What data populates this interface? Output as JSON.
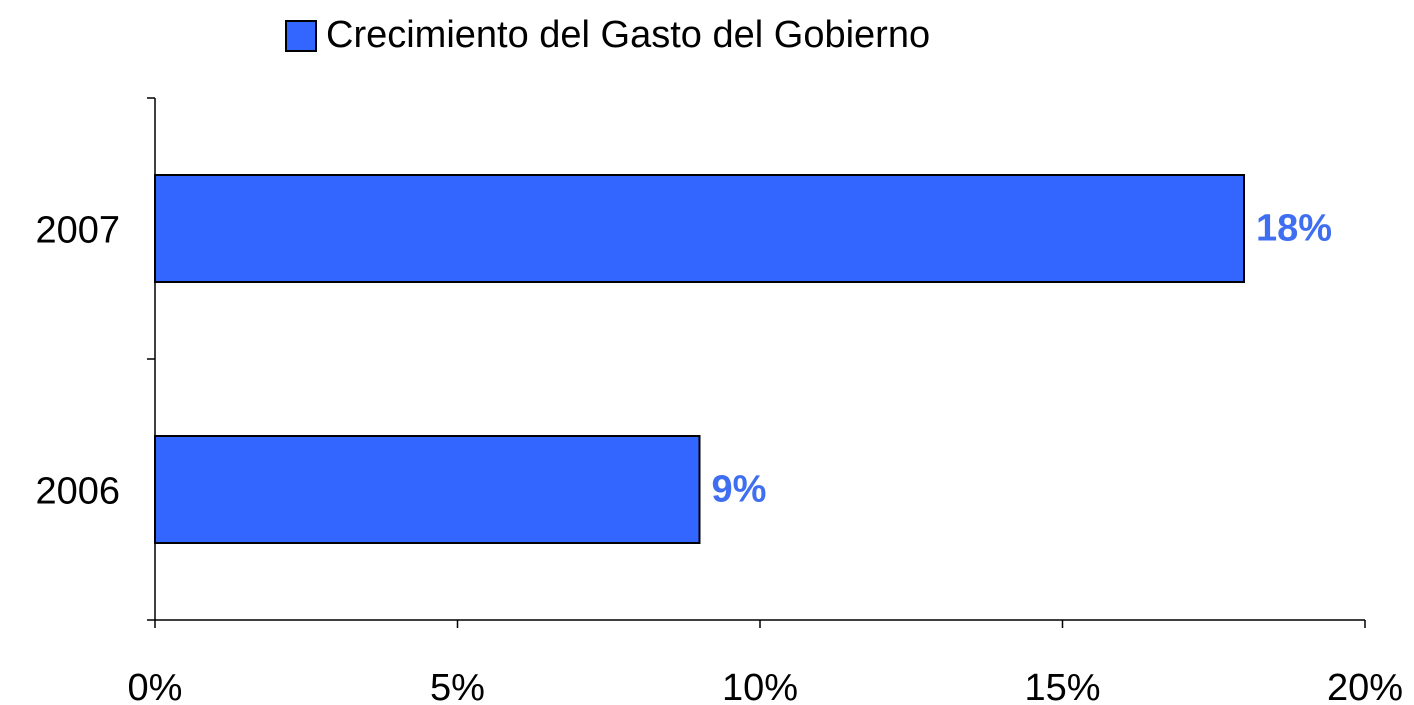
{
  "chart_data": {
    "type": "barh",
    "categories": [
      "2007",
      "2006"
    ],
    "series": [
      {
        "name": "Crecimiento del Gasto del Gobierno",
        "color": "#3366ff",
        "values": [
          18,
          9
        ],
        "value_labels": [
          "18%",
          "9%"
        ]
      }
    ],
    "xlim": [
      0,
      20
    ],
    "xticks": [
      {
        "value": 0,
        "label": "0%"
      },
      {
        "value": 5,
        "label": "5%"
      },
      {
        "value": 10,
        "label": "10%"
      },
      {
        "value": 15,
        "label": "15%"
      },
      {
        "value": 20,
        "label": "20%"
      }
    ],
    "legend": "top",
    "grid": false
  }
}
